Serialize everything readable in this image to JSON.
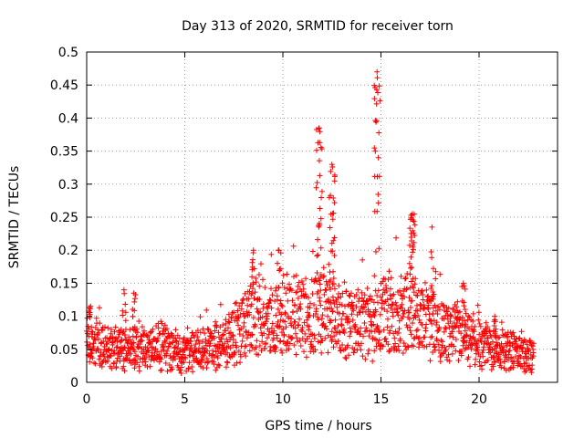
{
  "chart_data": {
    "type": "scatter",
    "title": "Day 313 of 2020, SRMTID for receiver torn",
    "xlabel": "GPS time / hours",
    "ylabel": "SRMTID / TECUs",
    "xlim": [
      0,
      24
    ],
    "ylim": [
      0,
      0.5
    ],
    "x_ticks": [
      0,
      5,
      10,
      15,
      20
    ],
    "x_tick_labels": [
      "0",
      "5",
      "10",
      "15",
      "20"
    ],
    "y_ticks": [
      0,
      0.05,
      0.1,
      0.15,
      0.2,
      0.25,
      0.3,
      0.35,
      0.4,
      0.45,
      0.5
    ],
    "y_tick_labels": [
      "0",
      "0.05",
      "0.1",
      "0.15",
      "0.2",
      "0.25",
      "0.3",
      "0.35",
      "0.4",
      "0.45",
      "0.5"
    ],
    "grid": true,
    "marker": "+",
    "series": [
      {
        "name": "SRMTID",
        "color": "#ff0000",
        "envelope_hours": [
          0,
          0.5,
          1,
          2,
          3,
          4,
          5,
          5.5,
          6,
          7,
          8,
          8.5,
          9,
          10,
          11,
          11.5,
          12,
          12.5,
          13,
          14,
          14.5,
          15,
          15.5,
          16,
          16.5,
          17,
          17.5,
          18,
          19,
          19.5,
          20,
          21,
          22,
          22.8
        ],
        "envelope_typical_TECU": [
          0.055,
          0.06,
          0.05,
          0.05,
          0.05,
          0.055,
          0.04,
          0.05,
          0.05,
          0.06,
          0.08,
          0.1,
          0.09,
          0.1,
          0.1,
          0.11,
          0.11,
          0.1,
          0.09,
          0.09,
          0.09,
          0.1,
          0.1,
          0.1,
          0.11,
          0.1,
          0.09,
          0.08,
          0.07,
          0.06,
          0.06,
          0.05,
          0.045,
          0.035
        ],
        "peaks": [
          {
            "hour": 0.2,
            "TECU": 0.115
          },
          {
            "hour": 1.9,
            "TECU": 0.14
          },
          {
            "hour": 2.4,
            "TECU": 0.135
          },
          {
            "hour": 8.5,
            "TECU": 0.2
          },
          {
            "hour": 9.8,
            "TECU": 0.2
          },
          {
            "hour": 11.85,
            "TECU": 0.385
          },
          {
            "hour": 12.5,
            "TECU": 0.33
          },
          {
            "hour": 14.8,
            "TECU": 0.47
          },
          {
            "hour": 16.6,
            "TECU": 0.255
          },
          {
            "hour": 17.6,
            "TECU": 0.235
          },
          {
            "hour": 19.2,
            "TECU": 0.15
          },
          {
            "hour": 20.8,
            "TECU": 0.1
          }
        ]
      }
    ]
  }
}
